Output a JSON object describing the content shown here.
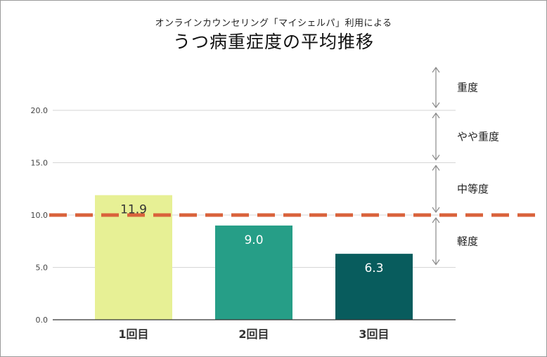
{
  "header": {
    "subtitle": "オンラインカウンセリング「マイシェルパ」利用による",
    "title": "うつ病重症度の平均推移"
  },
  "chart_data": {
    "type": "bar",
    "title": "うつ病重症度の平均推移",
    "subtitle": "オンラインカウンセリング「マイシェルパ」利用による",
    "categories": [
      "1回目",
      "2回目",
      "3回目"
    ],
    "values": [
      11.9,
      9.0,
      6.3
    ],
    "data_labels": [
      "11.9",
      "9.0",
      "6.3"
    ],
    "bar_colors": [
      "#e7f095",
      "#269e87",
      "#085c5d"
    ],
    "label_colors": [
      "#333333",
      "#ffffff",
      "#ffffff"
    ],
    "ylim": [
      0,
      20
    ],
    "yticks": [
      0,
      5,
      10,
      15,
      20
    ],
    "ytick_labels": [
      "0.0",
      "5.0",
      "10.0",
      "15.0",
      "20.0"
    ],
    "grid": true,
    "reference_line": {
      "value": 10,
      "color": "#d9623b",
      "style": "dashed"
    },
    "severity_bands": [
      {
        "label": "重度",
        "from": 20,
        "to": 25
      },
      {
        "label": "やや重度",
        "from": 15,
        "to": 20
      },
      {
        "label": "中等度",
        "from": 10,
        "to": 15
      },
      {
        "label": "軽度",
        "from": 5,
        "to": 10
      }
    ]
  }
}
